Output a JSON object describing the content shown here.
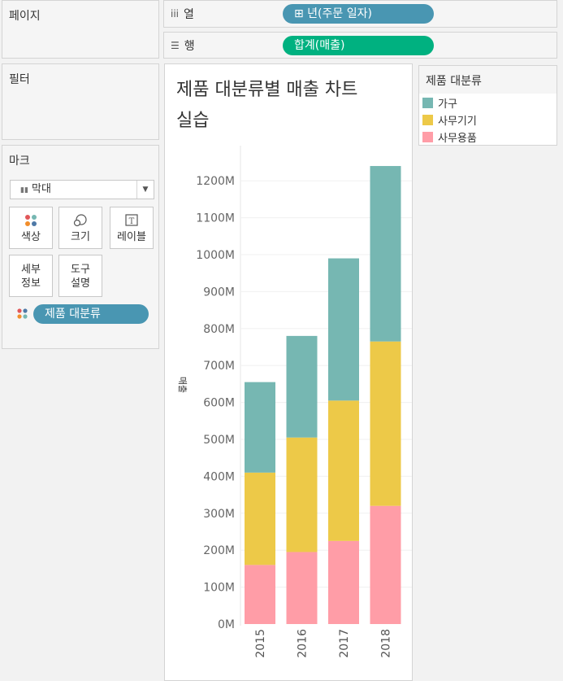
{
  "pages_panel": {
    "title": "페이지"
  },
  "filters_panel": {
    "title": "필터"
  },
  "columns_shelf": {
    "label": "열",
    "icon": "columns-icon",
    "pill": "⊞ 년(주문 일자)"
  },
  "rows_shelf": {
    "label": "행",
    "icon": "rows-icon",
    "pill": "합계(매출)"
  },
  "marks_panel": {
    "title": "마크",
    "mark_type": "막대",
    "buttons": [
      {
        "label": "색상",
        "icon": "color-icon"
      },
      {
        "label": "크기",
        "icon": "size-icon"
      },
      {
        "label": "레이블",
        "icon": "label-icon"
      },
      {
        "label_line1": "세부",
        "label_line2": "정보",
        "icon": "detail-icon"
      },
      {
        "label_line1": "도구",
        "label_line2": "설명",
        "icon": "tooltip-icon"
      }
    ],
    "color_pill": "제품 대분류"
  },
  "legend": {
    "title": "제품 대분류",
    "items": [
      {
        "label": "가구",
        "color": "#76b7b2"
      },
      {
        "label": "사무기기",
        "color": "#edc948"
      },
      {
        "label": "사무용품",
        "color": "#ff9da7"
      }
    ]
  },
  "colors": {
    "pill_blue": "#4996b2",
    "pill_green": "#00b180"
  },
  "chart_data": {
    "type": "bar",
    "stacked": true,
    "title_line1": "제품 대분류별 매출 차트",
    "title_line2": "실습",
    "ylabel": "매출",
    "categories": [
      "2015",
      "2016",
      "2017",
      "2018"
    ],
    "series": [
      {
        "name": "사무용품",
        "color": "#ff9da7",
        "values": [
          160,
          195,
          225,
          320
        ]
      },
      {
        "name": "사무기기",
        "color": "#edc948",
        "values": [
          250,
          310,
          380,
          445
        ]
      },
      {
        "name": "가구",
        "color": "#76b7b2",
        "values": [
          245,
          275,
          385,
          475
        ]
      }
    ],
    "yticks": [
      "0M",
      "100M",
      "200M",
      "300M",
      "400M",
      "500M",
      "600M",
      "700M",
      "800M",
      "900M",
      "1000M",
      "1100M",
      "1200M"
    ],
    "ylim": [
      0,
      1250
    ]
  }
}
